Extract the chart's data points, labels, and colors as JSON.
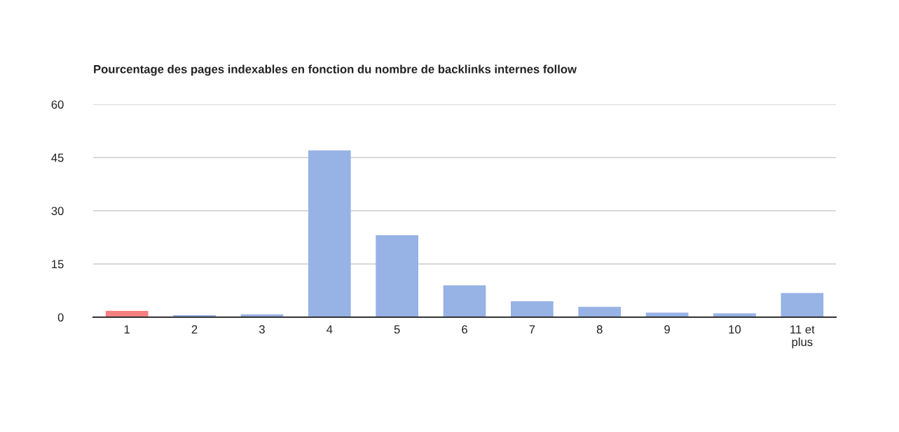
{
  "chart_data": {
    "type": "bar",
    "title": "Pourcentage des pages indexables en fonction du nombre de backlinks internes follow",
    "categories": [
      "1",
      "2",
      "3",
      "4",
      "5",
      "6",
      "7",
      "8",
      "9",
      "10",
      "11 et\nplus"
    ],
    "values": [
      1.8,
      0.6,
      0.8,
      47.0,
      23.1,
      9.0,
      4.5,
      2.9,
      1.3,
      1.1,
      6.8
    ],
    "colors": [
      "#f88080",
      "#97b2e4",
      "#97b2e4",
      "#97b2e4",
      "#97b2e4",
      "#97b2e4",
      "#97b2e4",
      "#97b2e4",
      "#97b2e4",
      "#97b2e4",
      "#97b2e4"
    ],
    "ylim": [
      0,
      60
    ],
    "yticks": [
      0,
      15,
      30,
      45,
      60
    ],
    "grid": "y"
  }
}
